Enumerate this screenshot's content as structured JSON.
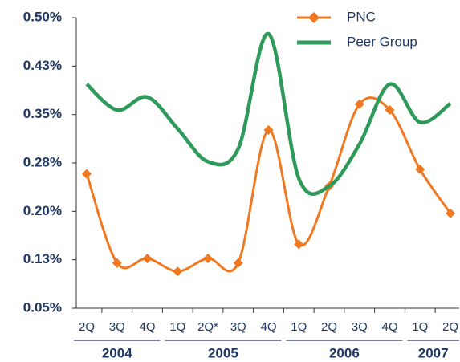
{
  "chart_data": {
    "type": "line",
    "categories": [
      "2Q",
      "3Q",
      "4Q",
      "1Q",
      "2Q*",
      "3Q",
      "4Q",
      "1Q",
      "2Q",
      "3Q",
      "4Q",
      "1Q",
      "2Q"
    ],
    "groups": [
      {
        "label": "2004",
        "count": 3
      },
      {
        "label": "2005",
        "count": 4
      },
      {
        "label": "2006",
        "count": 4
      },
      {
        "label": "2007",
        "count": 2
      }
    ],
    "series": [
      {
        "name": "PNC",
        "color": "#f07820",
        "marker": "diamond",
        "values": [
          0.258,
          0.12,
          0.127,
          0.107,
          0.127,
          0.12,
          0.326,
          0.149,
          0.239,
          0.366,
          0.357,
          0.265,
          0.197
        ]
      },
      {
        "name": "Peer Group",
        "color": "#2e9a5a",
        "values": [
          0.397,
          0.357,
          0.377,
          0.328,
          0.277,
          0.297,
          0.475,
          0.251,
          0.239,
          0.304,
          0.397,
          0.338,
          0.367
        ]
      }
    ],
    "ylim": [
      0.05,
      0.5
    ],
    "yticks": [
      {
        "value": 0.05,
        "label": "0.05%"
      },
      {
        "value": 0.125,
        "label": "0.13%"
      },
      {
        "value": 0.2,
        "label": "0.20%"
      },
      {
        "value": 0.275,
        "label": "0.28%"
      },
      {
        "value": 0.35,
        "label": "0.35%"
      },
      {
        "value": 0.425,
        "label": "0.43%"
      },
      {
        "value": 0.5,
        "label": "0.50%"
      }
    ],
    "legend": "top-right"
  }
}
